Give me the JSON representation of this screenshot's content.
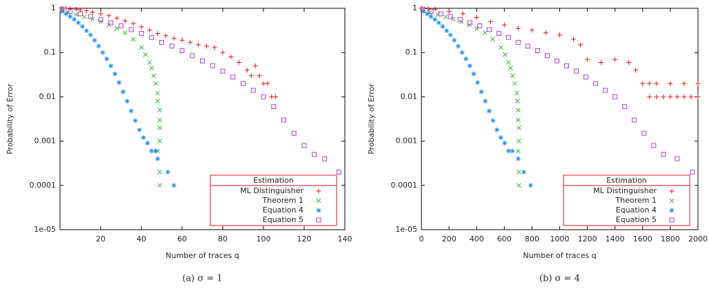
{
  "chart_data": [
    {
      "type": "scatter",
      "caption": "(a) σ = 1",
      "xlabel": "Number of traces q",
      "ylabel": "Probability of Error",
      "log_y": true,
      "xlim": [
        0,
        140
      ],
      "xticks": [
        20,
        40,
        60,
        80,
        100,
        120,
        140
      ],
      "ylim": [
        1e-05,
        1
      ],
      "yticks": [
        {
          "value": 1e-05,
          "label": "1e-05"
        },
        0.0001,
        0.001,
        0.01,
        0.1,
        1
      ],
      "legend_title": "Estimation",
      "legend_position": "lower right",
      "series": [
        {
          "name": "ML Distinguisher",
          "color": "#e8141c",
          "marker": "plus",
          "x": [
            1,
            3,
            5,
            8,
            10,
            13,
            16,
            20,
            24,
            28,
            32,
            36,
            40,
            44,
            48,
            52,
            56,
            60,
            64,
            68,
            72,
            76,
            80,
            84,
            88,
            92,
            94,
            96,
            98,
            100,
            102,
            104,
            106
          ],
          "values": [
            1,
            1,
            0.98,
            0.95,
            0.92,
            0.88,
            0.82,
            0.75,
            0.68,
            0.6,
            0.52,
            0.45,
            0.38,
            0.32,
            0.27,
            0.24,
            0.21,
            0.19,
            0.17,
            0.15,
            0.14,
            0.13,
            0.1,
            0.08,
            0.06,
            0.04,
            0.03,
            0.05,
            0.03,
            0.02,
            0.02,
            0.01,
            0.01
          ]
        },
        {
          "name": "Theorem 1",
          "color": "#3cb43c",
          "marker": "cross",
          "x": [
            1,
            4,
            8,
            12,
            16,
            20,
            24,
            28,
            32,
            36,
            40,
            42,
            44,
            45,
            46,
            47,
            48,
            48,
            49,
            49,
            49,
            49,
            48,
            49,
            49
          ],
          "values": [
            0.9,
            0.8,
            0.72,
            0.64,
            0.57,
            0.5,
            0.42,
            0.35,
            0.28,
            0.2,
            0.13,
            0.09,
            0.06,
            0.045,
            0.03,
            0.02,
            0.012,
            0.008,
            0.005,
            0.003,
            0.002,
            0.001,
            0.0006,
            0.0002,
            0.0001
          ]
        },
        {
          "name": "Equation 4",
          "color": "#1e8ff0",
          "marker": "star",
          "x": [
            1,
            3,
            5,
            7,
            9,
            11,
            13,
            15,
            17,
            19,
            21,
            23,
            25,
            27,
            29,
            31,
            33,
            35,
            37,
            39,
            41,
            43,
            45,
            47,
            48,
            53,
            56
          ],
          "values": [
            0.85,
            0.75,
            0.65,
            0.56,
            0.47,
            0.39,
            0.31,
            0.25,
            0.19,
            0.14,
            0.1,
            0.072,
            0.05,
            0.033,
            0.021,
            0.013,
            0.008,
            0.0048,
            0.0029,
            0.0018,
            0.0012,
            0.0009,
            0.0006,
            0.0006,
            0.0004,
            0.0002,
            0.0001
          ]
        },
        {
          "name": "Equation 5",
          "color": "#b040d0",
          "marker": "square",
          "x": [
            1,
            5,
            10,
            15,
            20,
            25,
            30,
            35,
            40,
            45,
            50,
            55,
            60,
            65,
            70,
            75,
            80,
            85,
            90,
            95,
            100,
            105,
            110,
            115,
            120,
            125,
            130,
            137
          ],
          "values": [
            0.95,
            0.85,
            0.75,
            0.65,
            0.55,
            0.47,
            0.4,
            0.33,
            0.27,
            0.22,
            0.17,
            0.14,
            0.11,
            0.085,
            0.065,
            0.05,
            0.038,
            0.028,
            0.02,
            0.014,
            0.01,
            0.006,
            0.003,
            0.0015,
            0.0008,
            0.0005,
            0.0004,
            0.0002
          ]
        }
      ]
    },
    {
      "type": "scatter",
      "caption": "(b) σ = 4",
      "xlabel": "Number of traces q",
      "ylabel": "Probability of Error",
      "log_y": true,
      "xlim": [
        0,
        2000
      ],
      "xticks": [
        0,
        200,
        400,
        600,
        800,
        1000,
        1200,
        1400,
        1600,
        1800,
        2000
      ],
      "ylim": [
        1e-05,
        1
      ],
      "yticks": [
        {
          "value": 1e-05,
          "label": "1e-05"
        },
        0.0001,
        0.001,
        0.01,
        0.1,
        1
      ],
      "legend_title": "Estimation",
      "legend_position": "lower right",
      "series": [
        {
          "name": "ML Distinguisher",
          "color": "#e8141c",
          "marker": "plus",
          "x": [
            0,
            50,
            100,
            200,
            300,
            400,
            500,
            600,
            700,
            800,
            900,
            1000,
            1100,
            1150,
            1200,
            1300,
            1400,
            1500,
            1550,
            1600,
            1650,
            1700,
            1800,
            1900,
            2000,
            1650,
            1700,
            1750,
            1800,
            1850,
            1900,
            1950,
            2000
          ],
          "values": [
            1,
            0.98,
            0.95,
            0.85,
            0.75,
            0.62,
            0.5,
            0.42,
            0.35,
            0.32,
            0.28,
            0.25,
            0.2,
            0.15,
            0.07,
            0.06,
            0.07,
            0.06,
            0.04,
            0.02,
            0.02,
            0.02,
            0.02,
            0.02,
            0.02,
            0.01,
            0.01,
            0.01,
            0.01,
            0.01,
            0.01,
            0.01,
            0.01
          ]
        },
        {
          "name": "Theorem 1",
          "color": "#3cb43c",
          "marker": "cross",
          "x": [
            10,
            60,
            120,
            175,
            230,
            290,
            345,
            400,
            460,
            515,
            575,
            605,
            630,
            645,
            660,
            675,
            690,
            695,
            700,
            700,
            705,
            705,
            700,
            705,
            705
          ],
          "values": [
            0.9,
            0.8,
            0.72,
            0.64,
            0.57,
            0.5,
            0.42,
            0.35,
            0.28,
            0.2,
            0.13,
            0.09,
            0.06,
            0.045,
            0.03,
            0.02,
            0.012,
            0.008,
            0.005,
            0.003,
            0.002,
            0.001,
            0.0006,
            0.0002,
            0.0001
          ]
        },
        {
          "name": "Equation 4",
          "color": "#1e8ff0",
          "marker": "star",
          "x": [
            14,
            42,
            70,
            98,
            126,
            154,
            182,
            210,
            238,
            266,
            294,
            322,
            350,
            378,
            406,
            434,
            462,
            490,
            518,
            546,
            574,
            602,
            630,
            658,
            700,
            740,
            790
          ],
          "values": [
            0.85,
            0.75,
            0.65,
            0.56,
            0.47,
            0.39,
            0.31,
            0.25,
            0.19,
            0.14,
            0.1,
            0.072,
            0.05,
            0.033,
            0.021,
            0.013,
            0.008,
            0.0048,
            0.0029,
            0.0018,
            0.0012,
            0.0009,
            0.0006,
            0.0006,
            0.0004,
            0.0002,
            0.0001
          ]
        },
        {
          "name": "Equation 5",
          "color": "#b040d0",
          "marker": "square",
          "x": [
            10,
            70,
            140,
            210,
            280,
            350,
            420,
            490,
            560,
            630,
            700,
            770,
            840,
            910,
            980,
            1050,
            1120,
            1190,
            1260,
            1330,
            1400,
            1470,
            1540,
            1610,
            1680,
            1750,
            1850,
            1960
          ],
          "values": [
            0.95,
            0.85,
            0.75,
            0.65,
            0.55,
            0.47,
            0.4,
            0.33,
            0.27,
            0.22,
            0.17,
            0.14,
            0.11,
            0.085,
            0.065,
            0.05,
            0.038,
            0.028,
            0.02,
            0.014,
            0.01,
            0.006,
            0.003,
            0.0015,
            0.0008,
            0.0005,
            0.0004,
            0.0002
          ]
        }
      ]
    }
  ]
}
